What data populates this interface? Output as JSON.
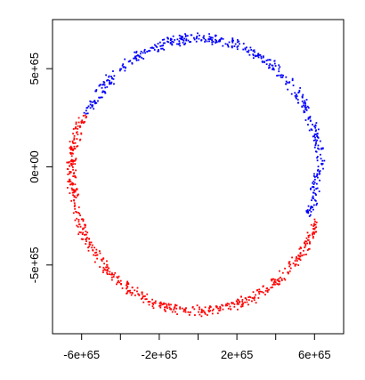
{
  "chart_data": {
    "type": "scatter",
    "title": "",
    "xlabel": "",
    "ylabel": "",
    "xlim": [
      -7.5e+65,
      7.5e+65
    ],
    "ylim": [
      -8.5e+65,
      7.5e+65
    ],
    "grid": false,
    "legend": "none",
    "x_ticks": [
      {
        "value": -6e+65,
        "label": "-6e+65"
      },
      {
        "value": -4e+65,
        "label": ""
      },
      {
        "value": -2e+65,
        "label": "-2e+65"
      },
      {
        "value": 0,
        "label": ""
      },
      {
        "value": 2e+65,
        "label": "2e+65"
      },
      {
        "value": 4e+65,
        "label": ""
      },
      {
        "value": 6e+65,
        "label": "6e+65"
      }
    ],
    "y_ticks": [
      {
        "value": -5e+65,
        "label": "-5e+65"
      },
      {
        "value": 0,
        "label": "0e+00"
      },
      {
        "value": 5e+65,
        "label": "5e+65"
      }
    ],
    "series": [
      {
        "color": "#0000ff",
        "shape": "ring",
        "angle_range_deg": [
          -20,
          155
        ],
        "radius_mean": 6.2e+65,
        "radius_jitter": 3.5e+64,
        "points": 500
      },
      {
        "color": "#ff0000",
        "shape": "ring",
        "angle_range_deg": [
          155,
          340
        ],
        "radius_mean": 6.4e+65,
        "radius_jitter": 3.5e+64,
        "points": 600
      }
    ]
  }
}
